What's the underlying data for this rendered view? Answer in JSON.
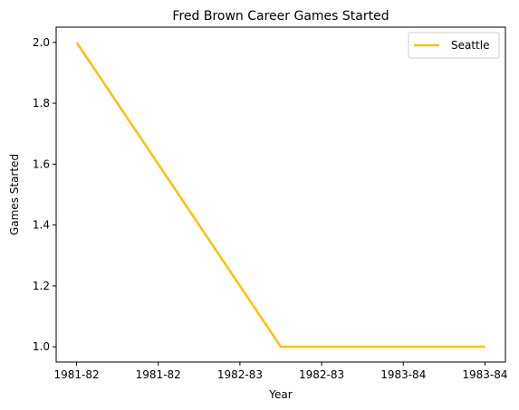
{
  "chart_data": {
    "type": "line",
    "title": "Fred Brown  Career Games Started",
    "xlabel": "Year",
    "ylabel": "Games Started",
    "x_ticks": [
      "1981-82",
      "1981-82",
      "1982-83",
      "1982-83",
      "1983-84",
      "1983-84"
    ],
    "series": [
      {
        "name": "Seattle",
        "color": "#ffc000",
        "x": [
          0,
          1,
          2,
          3,
          4,
          5
        ],
        "x_labels": [
          "1981-82",
          "1982-83",
          "1983-84"
        ],
        "points": [
          {
            "x": 0,
            "y": 2.0
          },
          {
            "x": 2.5,
            "y": 1.0
          },
          {
            "x": 5,
            "y": 1.0
          }
        ]
      }
    ],
    "y_ticks": [
      "1.0",
      "1.2",
      "1.4",
      "1.6",
      "1.8",
      "2.0"
    ],
    "xlim": [
      -0.25,
      5.25
    ],
    "ylim": [
      0.95,
      2.05
    ],
    "grid": false,
    "legend_position": "top-right"
  }
}
